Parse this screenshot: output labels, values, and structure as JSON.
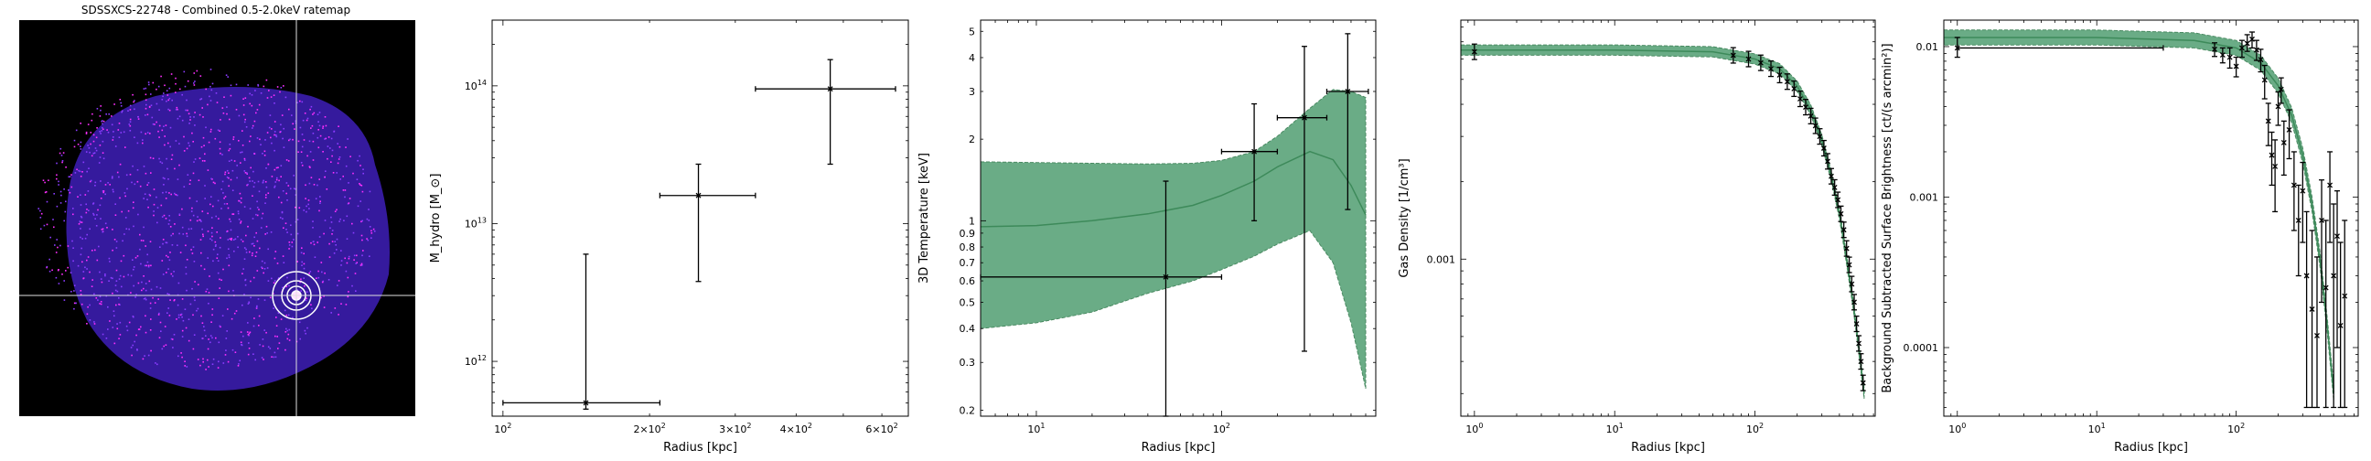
{
  "colors": {
    "band_fill": "#6aac86",
    "band_stroke": "#4a8a62",
    "model_line": "#3d8a5a",
    "data": "#000000",
    "ratemap_bg": "#000000",
    "ratemap_halo": "#3e1fb8",
    "ratemap_points": "#ff2fff",
    "crosshair": "#e0e0e0"
  },
  "chart_data": [
    {
      "type": "image",
      "title": "SDSSXCS-22748 - Combined 0.5-2.0keV ratemap",
      "crosshair": true,
      "annuli": 3
    },
    {
      "type": "scatter",
      "title": "",
      "xlabel": "Radius [kpc]",
      "ylabel": "M_hydro [M_⊙]",
      "xscale": "log",
      "yscale": "log",
      "xlim": [
        95,
        680
      ],
      "ylim": [
        400000000000.0,
        300000000000000.0
      ],
      "xticks": [
        100,
        200,
        300,
        400,
        600
      ],
      "xticklabels": [
        "10^2",
        "2×10^2",
        "3×10^2",
        "4×10^2",
        "6×10^2"
      ],
      "yticks": [
        1000000000000.0,
        10000000000000.0,
        100000000000000.0
      ],
      "yticklabels": [
        "10^12",
        "10^13",
        "10^14"
      ],
      "points": [
        {
          "x": 148,
          "xlo": 100,
          "xhi": 210,
          "y": 500000000000.0,
          "ylo": 450000000000.0,
          "yhi": 6000000000000.0
        },
        {
          "x": 252,
          "xlo": 210,
          "xhi": 330,
          "y": 16000000000000.0,
          "ylo": 3800000000000.0,
          "yhi": 27000000000000.0
        },
        {
          "x": 470,
          "xlo": 330,
          "xhi": 640,
          "y": 95000000000000.0,
          "ylo": 27000000000000.0,
          "yhi": 155000000000000.0
        }
      ]
    },
    {
      "type": "line",
      "title": "",
      "xlabel": "Radius [kpc]",
      "ylabel": "3D Temperature [keV]",
      "xscale": "log",
      "yscale": "log",
      "xlim": [
        5,
        680
      ],
      "ylim": [
        0.19,
        5.5
      ],
      "xticks": [
        10,
        100
      ],
      "xticklabels": [
        "10^1",
        "10^2"
      ],
      "yticks": [
        0.2,
        0.3,
        0.4,
        0.5,
        0.6,
        0.7,
        0.8,
        0.9,
        1,
        2,
        3,
        4,
        5
      ],
      "yticklabels": [
        "0.2",
        "0.3",
        "0.4",
        "0.5",
        "0.6",
        "0.7",
        "0.8",
        "0.9",
        "1",
        "2",
        "3",
        "4",
        "5"
      ],
      "model": {
        "x": [
          5,
          10,
          20,
          40,
          70,
          100,
          150,
          200,
          300,
          400,
          500,
          600
        ],
        "y": [
          0.95,
          0.96,
          1.0,
          1.06,
          1.14,
          1.24,
          1.4,
          1.58,
          1.8,
          1.68,
          1.35,
          1.05
        ]
      },
      "band": {
        "x": [
          5,
          10,
          20,
          40,
          70,
          100,
          150,
          200,
          300,
          400,
          500,
          600
        ],
        "lower": [
          0.4,
          0.42,
          0.46,
          0.54,
          0.6,
          0.66,
          0.74,
          0.82,
          0.92,
          0.7,
          0.42,
          0.24
        ],
        "upper": [
          1.65,
          1.64,
          1.63,
          1.62,
          1.63,
          1.67,
          1.8,
          2.05,
          2.6,
          3.05,
          3.0,
          2.85
        ]
      },
      "points": [
        {
          "x": 50,
          "xlo": 5,
          "xhi": 100,
          "y": 0.62,
          "ylo": 0.19,
          "yhi": 1.4
        },
        {
          "x": 150,
          "xlo": 100,
          "xhi": 200,
          "y": 1.8,
          "ylo": 1.0,
          "yhi": 2.7
        },
        {
          "x": 280,
          "xlo": 200,
          "xhi": 370,
          "y": 2.4,
          "ylo": 0.33,
          "yhi": 4.4
        },
        {
          "x": 480,
          "xlo": 370,
          "xhi": 620,
          "y": 3.0,
          "ylo": 1.1,
          "yhi": 4.9
        }
      ]
    },
    {
      "type": "line",
      "title": "",
      "xlabel": "Radius [kpc]",
      "ylabel": "Gas Density [1/cm³]",
      "xscale": "log",
      "yscale": "log",
      "xlim": [
        0.8,
        720
      ],
      "ylim": [
        0.000245,
        0.0085
      ],
      "xticks": [
        1,
        10,
        100
      ],
      "xticklabels": [
        "10^0",
        "10^1",
        "10^2"
      ],
      "yticks": [
        0.001
      ],
      "yticklabels": [
        "0.001"
      ],
      "model": {
        "x": [
          0.8,
          1,
          10,
          50,
          100,
          150,
          200,
          250,
          300,
          350,
          400,
          450,
          500,
          550,
          600
        ],
        "y": [
          0.0065,
          0.0065,
          0.0065,
          0.0064,
          0.006,
          0.0055,
          0.0047,
          0.0038,
          0.0029,
          0.0021,
          0.0015,
          0.001,
          0.00068,
          0.00045,
          0.0003
        ]
      },
      "band_width_dex": 0.02,
      "points": [
        {
          "x": 1,
          "y": 0.0064,
          "yerr_dex": 0.03
        },
        {
          "x": 70,
          "y": 0.0062,
          "yerr_dex": 0.03
        },
        {
          "x": 90,
          "y": 0.006,
          "yerr_dex": 0.03
        },
        {
          "x": 110,
          "y": 0.0058,
          "yerr_dex": 0.03
        },
        {
          "x": 130,
          "y": 0.0055,
          "yerr_dex": 0.03
        },
        {
          "x": 150,
          "y": 0.0052,
          "yerr_dex": 0.03
        },
        {
          "x": 170,
          "y": 0.0049,
          "yerr_dex": 0.03
        },
        {
          "x": 190,
          "y": 0.0046,
          "yerr_dex": 0.03
        },
        {
          "x": 210,
          "y": 0.0042,
          "yerr_dex": 0.03
        },
        {
          "x": 230,
          "y": 0.0039,
          "yerr_dex": 0.03
        },
        {
          "x": 250,
          "y": 0.0036,
          "yerr_dex": 0.03
        },
        {
          "x": 270,
          "y": 0.0033,
          "yerr_dex": 0.03
        },
        {
          "x": 290,
          "y": 0.003,
          "yerr_dex": 0.03
        },
        {
          "x": 310,
          "y": 0.0027,
          "yerr_dex": 0.03
        },
        {
          "x": 330,
          "y": 0.0024,
          "yerr_dex": 0.03
        },
        {
          "x": 350,
          "y": 0.0021,
          "yerr_dex": 0.03
        },
        {
          "x": 370,
          "y": 0.0019,
          "yerr_dex": 0.03
        },
        {
          "x": 390,
          "y": 0.0017,
          "yerr_dex": 0.03
        },
        {
          "x": 410,
          "y": 0.0015,
          "yerr_dex": 0.03
        },
        {
          "x": 430,
          "y": 0.0013,
          "yerr_dex": 0.03
        },
        {
          "x": 450,
          "y": 0.0011,
          "yerr_dex": 0.03
        },
        {
          "x": 470,
          "y": 0.00095,
          "yerr_dex": 0.03
        },
        {
          "x": 490,
          "y": 0.0008,
          "yerr_dex": 0.03
        },
        {
          "x": 510,
          "y": 0.00068,
          "yerr_dex": 0.03
        },
        {
          "x": 530,
          "y": 0.00056,
          "yerr_dex": 0.03
        },
        {
          "x": 550,
          "y": 0.00047,
          "yerr_dex": 0.03
        },
        {
          "x": 570,
          "y": 0.0004,
          "yerr_dex": 0.03
        },
        {
          "x": 590,
          "y": 0.00033,
          "yerr_dex": 0.03
        }
      ]
    },
    {
      "type": "line",
      "title": "",
      "xlabel": "Radius [kpc]",
      "ylabel": "Background Subtracted Surface Brightness [ct/(s arcmin²)]",
      "xscale": "log",
      "yscale": "log",
      "xlim": [
        0.8,
        750
      ],
      "ylim": [
        3.5e-05,
        0.015
      ],
      "xticks": [
        1,
        10,
        100
      ],
      "xticklabels": [
        "10^0",
        "10^1",
        "10^2"
      ],
      "yticks": [
        0.0001,
        0.001,
        0.01
      ],
      "yticklabels": [
        "0.0001",
        "0.001",
        "0.01"
      ],
      "model": {
        "x": [
          0.8,
          1,
          10,
          50,
          100,
          150,
          200,
          250,
          300,
          350,
          400,
          450,
          500
        ],
        "y": [
          0.0115,
          0.0115,
          0.0115,
          0.011,
          0.0098,
          0.0078,
          0.0055,
          0.0035,
          0.0019,
          0.0009,
          0.00038,
          0.00014,
          5e-05
        ]
      },
      "band_width_dex": 0.05,
      "points": [
        {
          "x": 1,
          "xlo": 1,
          "xhi": 30,
          "y": 0.0098,
          "ylo": 0.0085,
          "yhi": 0.0115
        },
        {
          "x": 70,
          "y": 0.0096,
          "ylo": 0.0086,
          "yhi": 0.0106
        },
        {
          "x": 80,
          "y": 0.0088,
          "ylo": 0.0078,
          "yhi": 0.0098
        },
        {
          "x": 90,
          "y": 0.0085,
          "ylo": 0.0072,
          "yhi": 0.0098
        },
        {
          "x": 100,
          "y": 0.0074,
          "ylo": 0.0063,
          "yhi": 0.0085
        },
        {
          "x": 110,
          "y": 0.0098,
          "ylo": 0.0085,
          "yhi": 0.011
        },
        {
          "x": 120,
          "y": 0.0105,
          "ylo": 0.0093,
          "yhi": 0.012
        },
        {
          "x": 130,
          "y": 0.0112,
          "ylo": 0.0098,
          "yhi": 0.0125
        },
        {
          "x": 140,
          "y": 0.0095,
          "ylo": 0.0081,
          "yhi": 0.011
        },
        {
          "x": 150,
          "y": 0.0082,
          "ylo": 0.0068,
          "yhi": 0.0096
        },
        {
          "x": 160,
          "y": 0.006,
          "ylo": 0.0045,
          "yhi": 0.0075
        },
        {
          "x": 170,
          "y": 0.0032,
          "ylo": 0.0022,
          "yhi": 0.0042
        },
        {
          "x": 180,
          "y": 0.0019,
          "ylo": 0.0012,
          "yhi": 0.0027
        },
        {
          "x": 190,
          "y": 0.0016,
          "ylo": 0.0008,
          "yhi": 0.0024
        },
        {
          "x": 200,
          "y": 0.004,
          "ylo": 0.003,
          "yhi": 0.005
        },
        {
          "x": 210,
          "y": 0.0052,
          "ylo": 0.0042,
          "yhi": 0.0062
        },
        {
          "x": 220,
          "y": 0.0023,
          "ylo": 0.0014,
          "yhi": 0.0032
        },
        {
          "x": 240,
          "y": 0.0028,
          "ylo": 0.0018,
          "yhi": 0.0038
        },
        {
          "x": 260,
          "y": 0.0012,
          "ylo": 0.0006,
          "yhi": 0.002
        },
        {
          "x": 280,
          "y": 0.0007,
          "ylo": 0.0003,
          "yhi": 0.0012
        },
        {
          "x": 300,
          "y": 0.0011,
          "ylo": 0.0005,
          "yhi": 0.0017
        },
        {
          "x": 320,
          "y": 0.0003,
          "ylo": 4e-05,
          "yhi": 0.0008
        },
        {
          "x": 350,
          "y": 0.00018,
          "ylo": 4e-05,
          "yhi": 0.0006
        },
        {
          "x": 380,
          "y": 0.00012,
          "ylo": 4e-05,
          "yhi": 0.0004
        },
        {
          "x": 410,
          "y": 0.0007,
          "ylo": 0.0002,
          "yhi": 0.0013
        },
        {
          "x": 440,
          "y": 0.00025,
          "ylo": 4e-05,
          "yhi": 0.0007
        },
        {
          "x": 470,
          "y": 0.0012,
          "ylo": 0.0005,
          "yhi": 0.002
        },
        {
          "x": 500,
          "y": 0.0003,
          "ylo": 4e-05,
          "yhi": 0.0009
        },
        {
          "x": 530,
          "y": 0.00055,
          "ylo": 0.0001,
          "yhi": 0.0011
        },
        {
          "x": 560,
          "y": 0.00014,
          "ylo": 4e-05,
          "yhi": 0.0005
        },
        {
          "x": 600,
          "y": 0.00022,
          "ylo": 4e-05,
          "yhi": 0.0007
        }
      ]
    }
  ]
}
